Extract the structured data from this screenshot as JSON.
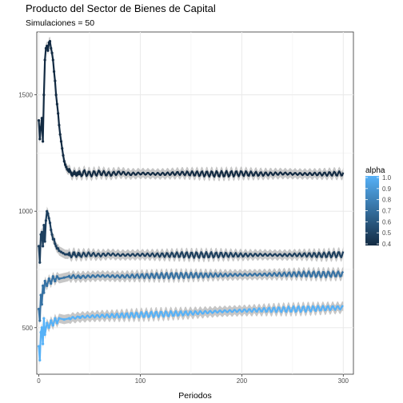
{
  "chart_data": {
    "type": "line",
    "title": "Producto del Sector de Bienes de Capital",
    "subtitle": "Simulaciones = 50",
    "xlabel": "Periodos",
    "ylabel": "",
    "xlim": [
      -2,
      310
    ],
    "ylim": [
      300,
      1770
    ],
    "x_ticks": [
      0,
      100,
      200,
      300
    ],
    "x_tick_labels": [
      "0",
      "100",
      "200",
      "300"
    ],
    "y_ticks": [
      500,
      1000,
      1500
    ],
    "y_tick_labels": [
      "500",
      "1000",
      "1500"
    ],
    "grid": true,
    "band_color": "#bdbdbd",
    "legend": {
      "title": "alpha",
      "position": "right",
      "type": "colorbar",
      "labels": [
        "1.0",
        "0.9",
        "0.8",
        "0.7",
        "0.6",
        "0.5",
        "0.4"
      ],
      "values": [
        1.0,
        0.9,
        0.8,
        0.7,
        0.6,
        0.5,
        0.4
      ],
      "color_low": "#132b43",
      "color_high": "#56b1f7"
    },
    "series": [
      {
        "alpha": 0.4,
        "color": "#132b43",
        "x": [
          0,
          1,
          2,
          3,
          4,
          5,
          6,
          7,
          8,
          9,
          10,
          11,
          12,
          13,
          14,
          15,
          16,
          17,
          18,
          19,
          20,
          21,
          22,
          23,
          24,
          25,
          26,
          27,
          28,
          29,
          30,
          32,
          34,
          36,
          38,
          40,
          45,
          50,
          60,
          70,
          80,
          90,
          100,
          120,
          140,
          160,
          180,
          200,
          220,
          240,
          260,
          280,
          300
        ],
        "y": [
          1390,
          1310,
          1360,
          1400,
          1300,
          1500,
          1650,
          1700,
          1710,
          1690,
          1725,
          1730,
          1700,
          1680,
          1650,
          1600,
          1560,
          1500,
          1460,
          1420,
          1370,
          1330,
          1300,
          1270,
          1240,
          1215,
          1200,
          1190,
          1180,
          1175,
          1170,
          1165,
          1160,
          1160,
          1165,
          1160,
          1165,
          1160,
          1165,
          1160,
          1165,
          1160,
          1162,
          1160,
          1163,
          1161,
          1160,
          1162,
          1160,
          1162,
          1160,
          1160,
          1162
        ]
      },
      {
        "alpha": 0.5,
        "color": "#1d3f5e",
        "x": [
          0,
          1,
          2,
          3,
          4,
          5,
          6,
          7,
          8,
          9,
          10,
          11,
          12,
          13,
          14,
          15,
          16,
          17,
          18,
          19,
          20,
          22,
          24,
          26,
          28,
          30,
          35,
          40,
          50,
          60,
          70,
          80,
          100,
          120,
          140,
          160,
          180,
          200,
          220,
          240,
          260,
          280,
          300
        ],
        "y": [
          850,
          780,
          900,
          910,
          850,
          940,
          870,
          960,
          1000,
          990,
          970,
          950,
          920,
          900,
          880,
          880,
          860,
          850,
          840,
          840,
          830,
          825,
          820,
          815,
          815,
          812,
          815,
          812,
          815,
          812,
          815,
          812,
          813,
          812,
          813,
          812,
          813,
          812,
          813,
          812,
          813,
          812,
          815
        ]
      },
      {
        "alpha": 0.7,
        "color": "#3672a4",
        "x": [
          0,
          1,
          2,
          3,
          4,
          5,
          6,
          8,
          10,
          12,
          14,
          16,
          18,
          20,
          25,
          30,
          40,
          50,
          60,
          80,
          100,
          120,
          140,
          160,
          180,
          200,
          220,
          240,
          260,
          280,
          300
        ],
        "y": [
          580,
          530,
          640,
          600,
          680,
          650,
          700,
          680,
          710,
          690,
          720,
          700,
          720,
          710,
          715,
          720,
          718,
          720,
          722,
          720,
          722,
          723,
          724,
          725,
          726,
          727,
          728,
          729,
          730,
          729,
          730
        ]
      },
      {
        "alpha": 1.0,
        "color": "#56b1f7",
        "x": [
          0,
          1,
          2,
          3,
          4,
          5,
          6,
          8,
          10,
          12,
          14,
          16,
          18,
          20,
          25,
          30,
          40,
          50,
          60,
          80,
          100,
          120,
          140,
          160,
          180,
          200,
          220,
          240,
          260,
          280,
          300
        ],
        "y": [
          420,
          360,
          480,
          500,
          430,
          540,
          470,
          520,
          500,
          530,
          510,
          540,
          520,
          540,
          535,
          540,
          545,
          548,
          550,
          552,
          555,
          558,
          561,
          565,
          570,
          573,
          576,
          578,
          580,
          583,
          586
        ]
      }
    ]
  }
}
